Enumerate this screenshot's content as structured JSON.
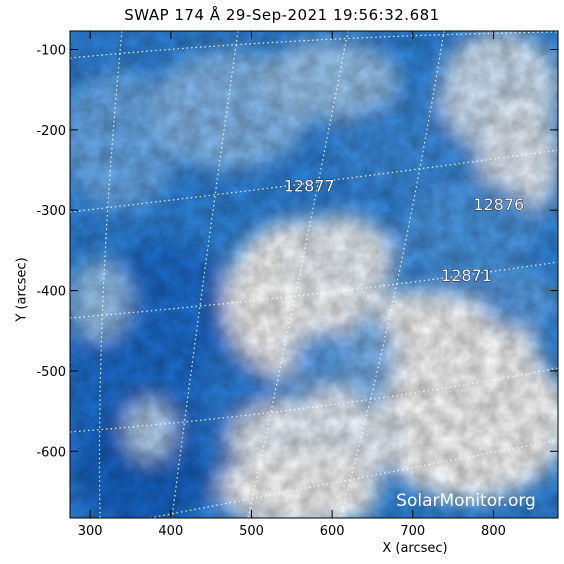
{
  "title": "SWAP 174 Å 29-Sep-2021 19:56:32.681",
  "axes": {
    "xlabel": "X (arcsec)",
    "ylabel": "Y (arcsec)",
    "xlim": [
      275,
      880
    ],
    "ylim": [
      -683,
      -77
    ],
    "xticks": [
      300,
      400,
      500,
      600,
      700,
      800
    ],
    "yticks": [
      -100,
      -200,
      -300,
      -400,
      -500,
      -600
    ]
  },
  "regions": [
    {
      "label": "12877",
      "x": 540,
      "y": -277
    },
    {
      "label": "12876",
      "x": 775,
      "y": -300
    },
    {
      "label": "12871",
      "x": 735,
      "y": -388
    }
  ],
  "watermark": "SolarMonitor.org",
  "colors": {
    "deep": "#1a6fd4",
    "mid": "#5aa3ec",
    "light": "#b9d8f6",
    "white": "#ffffff"
  }
}
